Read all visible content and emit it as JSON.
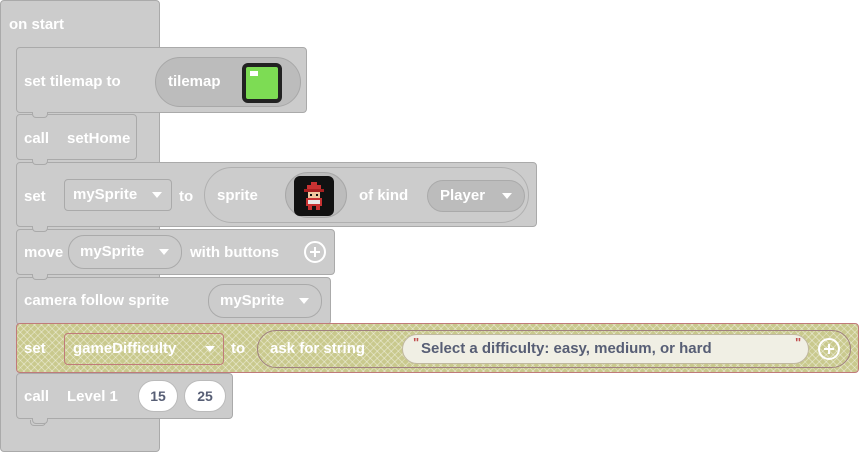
{
  "event": {
    "label": "on start"
  },
  "blocks": {
    "set_tilemap": {
      "label": "set tilemap to",
      "value_label": "tilemap"
    },
    "call_home": {
      "label": "call",
      "function": "setHome"
    },
    "set_sprite": {
      "set_label": "set",
      "variable": "mySprite",
      "to_label": "to",
      "sprite_label": "sprite",
      "of_kind_label": "of kind",
      "kind": "Player"
    },
    "move": {
      "label": "move",
      "variable": "mySprite",
      "with_label": "with buttons"
    },
    "camera": {
      "label": "camera follow sprite",
      "variable": "mySprite"
    },
    "set_difficulty": {
      "set_label": "set",
      "variable": "gameDifficulty",
      "to_label": "to",
      "ask_label": "ask for string",
      "prompt": "Select a difficulty: easy, medium, or hard",
      "open_quote": "\"",
      "close_quote": "\""
    },
    "call_level": {
      "label": "call",
      "function": "Level 1",
      "arg1": "15",
      "arg2": "25"
    }
  },
  "colors": {
    "block": "#cccccc",
    "highlight_border": "#c07a7a",
    "tilemap_green": "#7ddc54"
  }
}
